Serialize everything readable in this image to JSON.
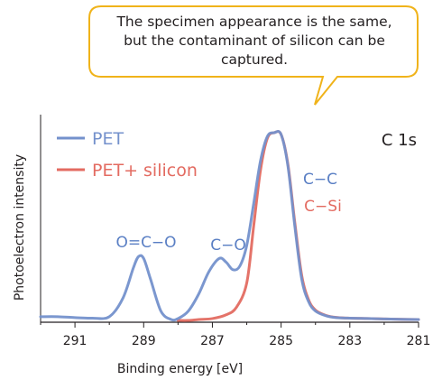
{
  "callout": {
    "lines": [
      "The specimen appearance is the same,",
      "but the contaminant of silicon can be",
      "captured."
    ],
    "border_color": "#f0b31a"
  },
  "chart_data": {
    "type": "line",
    "title": "C 1s",
    "xlabel": "Binding energy",
    "xlabel_unit": "[eV]",
    "ylabel": "Photoelectron intensity",
    "xlim": [
      292,
      281
    ],
    "x_reversed": true,
    "xticks": [
      291,
      289,
      287,
      285,
      283,
      281
    ],
    "xtick_labels": [
      "291",
      "289",
      "287",
      "285",
      "283",
      "281"
    ],
    "ylim": [
      0,
      1
    ],
    "legend_placement": "top-left",
    "grid": false,
    "series": [
      {
        "name": "PET",
        "color": "#7491cc",
        "x": [
          292.0,
          291.5,
          291.0,
          290.5,
          290.0,
          289.6,
          289.3,
          289.15,
          289.0,
          288.8,
          288.5,
          288.2,
          288.0,
          287.7,
          287.4,
          287.1,
          286.8,
          286.6,
          286.4,
          286.2,
          286.0,
          285.8,
          285.6,
          285.4,
          285.2,
          285.0,
          284.8,
          284.6,
          284.4,
          284.2,
          284.0,
          283.7,
          283.4,
          283.0,
          282.5,
          282.0,
          281.5,
          281.0
        ],
        "y": [
          0.02,
          0.02,
          0.015,
          0.012,
          0.02,
          0.12,
          0.28,
          0.34,
          0.33,
          0.22,
          0.05,
          0.005,
          0.01,
          0.05,
          0.14,
          0.26,
          0.33,
          0.31,
          0.27,
          0.29,
          0.4,
          0.62,
          0.85,
          0.98,
          1.0,
          0.99,
          0.82,
          0.5,
          0.22,
          0.1,
          0.05,
          0.025,
          0.015,
          0.012,
          0.01,
          0.008,
          0.006,
          0.005
        ]
      },
      {
        "name": "PET+ silicon",
        "color": "#e36b61",
        "x": [
          288.0,
          287.7,
          287.4,
          287.0,
          286.6,
          286.3,
          286.0,
          285.8,
          285.6,
          285.4,
          285.2,
          285.0,
          284.8,
          284.6,
          284.4,
          284.2,
          284.0,
          283.7,
          283.4,
          283.0,
          282.5,
          282.0,
          281.5,
          281.0
        ],
        "y": [
          0.0,
          0.0,
          0.005,
          0.01,
          0.03,
          0.07,
          0.2,
          0.5,
          0.8,
          0.97,
          1.0,
          0.99,
          0.83,
          0.52,
          0.24,
          0.11,
          0.055,
          0.027,
          0.016,
          0.012,
          0.01,
          0.008,
          0.006,
          0.005
        ]
      }
    ],
    "annotations": [
      {
        "text": "O=C−O",
        "series": "PET"
      },
      {
        "text": "C−O",
        "series": "PET"
      },
      {
        "text": "C−C",
        "series": "PET"
      },
      {
        "text": "C−Si",
        "series": "PET+ silicon"
      }
    ]
  }
}
